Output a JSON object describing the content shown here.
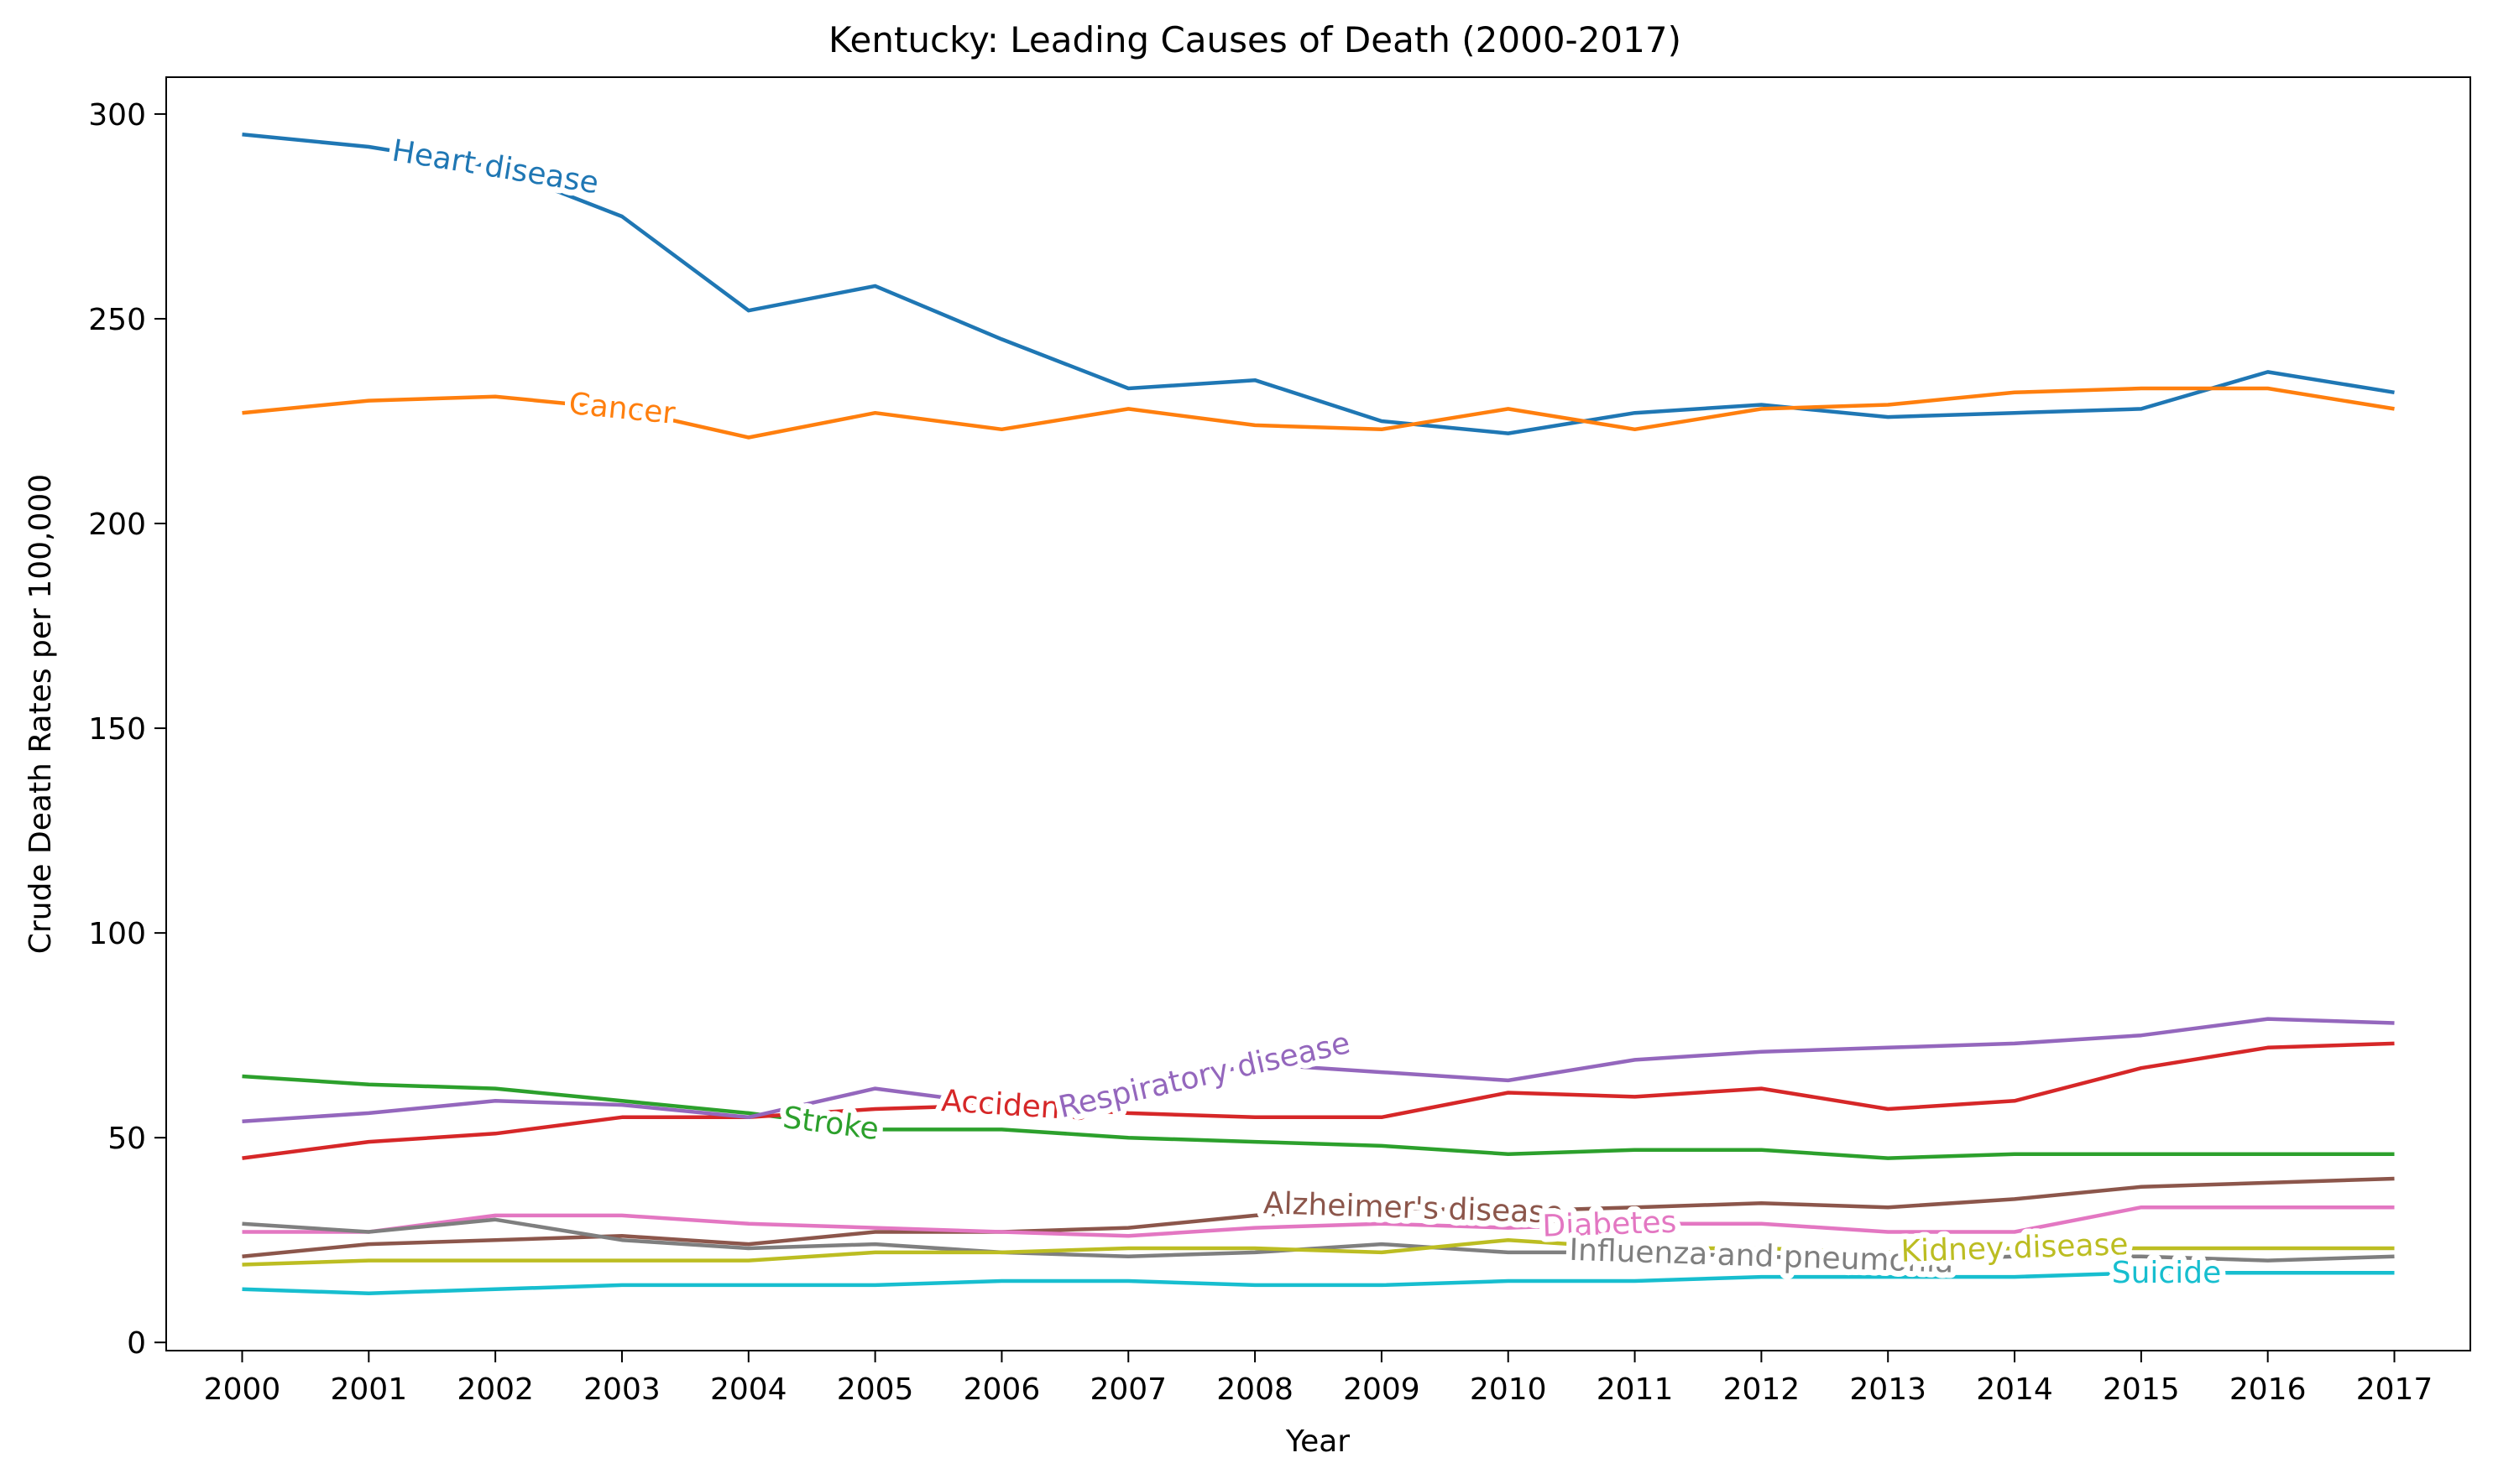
{
  "chart_data": {
    "type": "line",
    "title": "Kentucky: Leading Causes of Death (2000-2017)",
    "xlabel": "Year",
    "ylabel": "Crude Death Rates per 100,000",
    "x": [
      2000,
      2001,
      2002,
      2003,
      2004,
      2005,
      2006,
      2007,
      2008,
      2009,
      2010,
      2011,
      2012,
      2013,
      2014,
      2015,
      2016,
      2017
    ],
    "x_tick_labels": [
      "2000",
      "2001",
      "2002",
      "2003",
      "2004",
      "2005",
      "2006",
      "2007",
      "2008",
      "2009",
      "2010",
      "2011",
      "2012",
      "2013",
      "2014",
      "2015",
      "2016",
      "2017"
    ],
    "ylim": [
      -2,
      309
    ],
    "y_ticks": [
      0,
      50,
      100,
      150,
      200,
      250,
      300
    ],
    "y_tick_labels": [
      "0",
      "50",
      "100",
      "150",
      "200",
      "250",
      "300"
    ],
    "grid": false,
    "legend": "inline labels",
    "series": [
      {
        "name": "Heart disease",
        "color": "#1f77b4",
        "label_x": 2002.0,
        "values": [
          295,
          292,
          287,
          275,
          252,
          258,
          245,
          233,
          235,
          225,
          222,
          227,
          229,
          226,
          227,
          228,
          237,
          232
        ]
      },
      {
        "name": "Cancer",
        "color": "#ff7f0e",
        "label_x": 2003.0,
        "values": [
          227,
          230,
          231,
          228,
          221,
          227,
          223,
          228,
          224,
          223,
          228,
          223,
          228,
          229,
          232,
          233,
          233,
          228
        ]
      },
      {
        "name": "Stroke",
        "color": "#2ca02c",
        "label_x": 2004.65,
        "values": [
          65,
          63,
          62,
          59,
          56,
          52,
          52,
          50,
          49,
          48,
          46,
          47,
          47,
          45,
          46,
          46,
          46,
          46
        ]
      },
      {
        "name": "Accidents",
        "color": "#d62728",
        "label_x": 2006.1,
        "values": [
          45,
          49,
          51,
          55,
          55,
          57,
          58,
          56,
          55,
          55,
          61,
          60,
          62,
          57,
          59,
          67,
          72,
          73
        ]
      },
      {
        "name": "Respiratory disease",
        "color": "#9467bd",
        "label_x": 2007.6,
        "values": [
          54,
          56,
          59,
          58,
          55,
          62,
          58,
          61,
          68,
          66,
          64,
          69,
          71,
          72,
          73,
          75,
          79,
          78
        ]
      },
      {
        "name": "Alzheimer's disease",
        "color": "#8c564b",
        "label_x": 2009.25,
        "values": [
          21,
          24,
          25,
          26,
          24,
          27,
          27,
          28,
          31,
          33,
          32,
          33,
          34,
          33,
          35,
          38,
          39,
          40
        ]
      },
      {
        "name": "Diabetes",
        "color": "#e377c2",
        "label_x": 2010.8,
        "values": [
          27,
          27,
          31,
          31,
          29,
          28,
          27,
          26,
          28,
          29,
          28,
          29,
          29,
          27,
          27,
          33,
          33,
          33
        ]
      },
      {
        "name": "Influenza and pneumonia",
        "color": "#7f7f7f",
        "label_x": 2012.0,
        "values": [
          29,
          27,
          30,
          25,
          23,
          24,
          22,
          21,
          22,
          24,
          22,
          22,
          21,
          20,
          21,
          21,
          20,
          21
        ]
      },
      {
        "name": "Kidney disease",
        "color": "#bcbd22",
        "label_x": 2014.0,
        "values": [
          19,
          20,
          20,
          20,
          20,
          22,
          22,
          23,
          23,
          22,
          25,
          23,
          23,
          22,
          23,
          23,
          23,
          23
        ]
      },
      {
        "name": "Suicide",
        "color": "#17becf",
        "label_x": 2015.2,
        "values": [
          13,
          12,
          13,
          14,
          14,
          14,
          15,
          15,
          14,
          14,
          15,
          15,
          16,
          16,
          16,
          17,
          17,
          17
        ]
      }
    ]
  }
}
